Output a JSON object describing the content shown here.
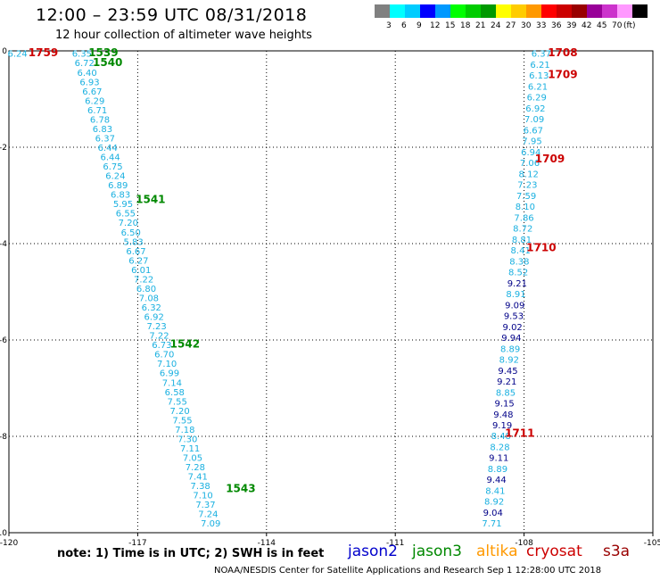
{
  "header": {
    "title": "12:00 – 23:59 UTC 08/31/2018",
    "subtitle": "12 hour collection of altimeter wave heights"
  },
  "colorbar": {
    "colors": [
      "#808080",
      "#00ffff",
      "#00ccff",
      "#0000ff",
      "#0099ff",
      "#00ff00",
      "#00cc00",
      "#009900",
      "#ffff00",
      "#ffcc00",
      "#ff9900",
      "#ff0000",
      "#cc0000",
      "#990000",
      "#990099",
      "#cc33cc",
      "#ff99ff",
      "#000000"
    ],
    "labels": [
      "3",
      "6",
      "9",
      "12",
      "15",
      "18",
      "21",
      "24",
      "27",
      "30",
      "33",
      "36",
      "39",
      "42",
      "45",
      "70",
      "(ft)"
    ]
  },
  "map": {
    "x_ticks": [
      "-120",
      "-117",
      "-114",
      "-111",
      "-108",
      "-105"
    ],
    "y_ticks": [
      "0",
      "-2",
      "-4",
      "-6",
      "-8",
      "-10"
    ],
    "x_range": [
      -120,
      -105
    ],
    "y_range": [
      0,
      -10
    ],
    "track_left": {
      "start": [
        -118.3,
        -0.05
      ],
      "end": [
        -115.3,
        -9.8
      ],
      "values": [
        "6.35",
        "6.72",
        "6.40",
        "6.93",
        "6.67",
        "6.29",
        "6.71",
        "6.78",
        "6.83",
        "6.37",
        "6.44",
        "6.44",
        "6.75",
        "6.24",
        "6.89",
        "6.83",
        "5.95",
        "6.55",
        "7.20",
        "6.50",
        "5.83",
        "6.67",
        "6.27",
        "6.01",
        "7.22",
        "6.80",
        "7.08",
        "6.32",
        "6.92",
        "7.23",
        "7.22",
        "6.73",
        "6.70",
        "7.10",
        "6.99",
        "7.14",
        "6.58",
        "7.55",
        "7.20",
        "7.55",
        "7.18",
        "7.30",
        "7.11",
        "7.05",
        "7.28",
        "7.41",
        "7.38",
        "7.10",
        "7.37",
        "7.24",
        "7.09"
      ],
      "extra": [
        {
          "text": "6.24",
          "lon": -119.8,
          "lat": -0.05
        }
      ]
    },
    "track_right": {
      "start": [
        -107.6,
        -0.05
      ],
      "end": [
        -108.75,
        -9.8
      ],
      "values": [
        "6.37",
        "6.21",
        "6.13",
        "6.21",
        "6.29",
        "6.92",
        "7.09",
        "6.67",
        "7.95",
        "6.94",
        "7.06",
        "8.12",
        "7.23",
        "7.59",
        "8.10",
        "7.86",
        "8.72",
        "8.81",
        "8.41",
        "8.38",
        "8.52",
        "9.21",
        "8.91",
        "9.09",
        "9.53",
        "9.02",
        "9.94",
        "8.89",
        "8.92",
        "9.45",
        "9.21",
        "8.85",
        "9.15",
        "9.48",
        "9.19",
        "8.48",
        "8.28",
        "9.11",
        "8.89",
        "9.44",
        "8.41",
        "8.92",
        "9.04",
        "7.71"
      ],
      "dark_values": [
        "9.21",
        "9.09",
        "9.53",
        "9.02",
        "9.94",
        "9.45",
        "9.21",
        "9.15",
        "9.48",
        "9.19",
        "9.11",
        "9.44",
        "9.04"
      ]
    },
    "time_labels": [
      {
        "text": "1759",
        "lon": -119.2,
        "lat": 0.0,
        "color": "#cc0000"
      },
      {
        "text": "1539",
        "lon": -117.8,
        "lat": 0.0,
        "color": "#008800"
      },
      {
        "text": "1540",
        "lon": -117.7,
        "lat": -0.2,
        "color": "#008800"
      },
      {
        "text": "1541",
        "lon": -116.7,
        "lat": -3.05,
        "color": "#008800"
      },
      {
        "text": "1542",
        "lon": -115.9,
        "lat": -6.05,
        "color": "#008800"
      },
      {
        "text": "1543",
        "lon": -114.6,
        "lat": -9.05,
        "color": "#008800"
      },
      {
        "text": "1708",
        "lon": -107.1,
        "lat": 0.0,
        "color": "#cc0000"
      },
      {
        "text": "1709",
        "lon": -107.1,
        "lat": -0.45,
        "color": "#cc0000"
      },
      {
        "text": "1709",
        "lon": -107.4,
        "lat": -2.2,
        "color": "#cc0000"
      },
      {
        "text": "1710",
        "lon": -107.6,
        "lat": -4.05,
        "color": "#cc0000"
      },
      {
        "text": "1711",
        "lon": -108.1,
        "lat": -7.9,
        "color": "#cc0000"
      }
    ]
  },
  "footer": {
    "note": "note: 1) Time is in UTC; 2) SWH is in feet",
    "credit": "NOAA/NESDIS Center for Satellite Applications and Research   Sep  1 12:28:00 UTC 2018",
    "satellites": [
      {
        "name": "jason2",
        "color": "#0000cc"
      },
      {
        "name": "jason3",
        "color": "#008800"
      },
      {
        "name": "altika",
        "color": "#ff9900"
      },
      {
        "name": "cryosat",
        "color": "#cc0000"
      },
      {
        "name": "s3a",
        "color": "#990000"
      }
    ]
  }
}
